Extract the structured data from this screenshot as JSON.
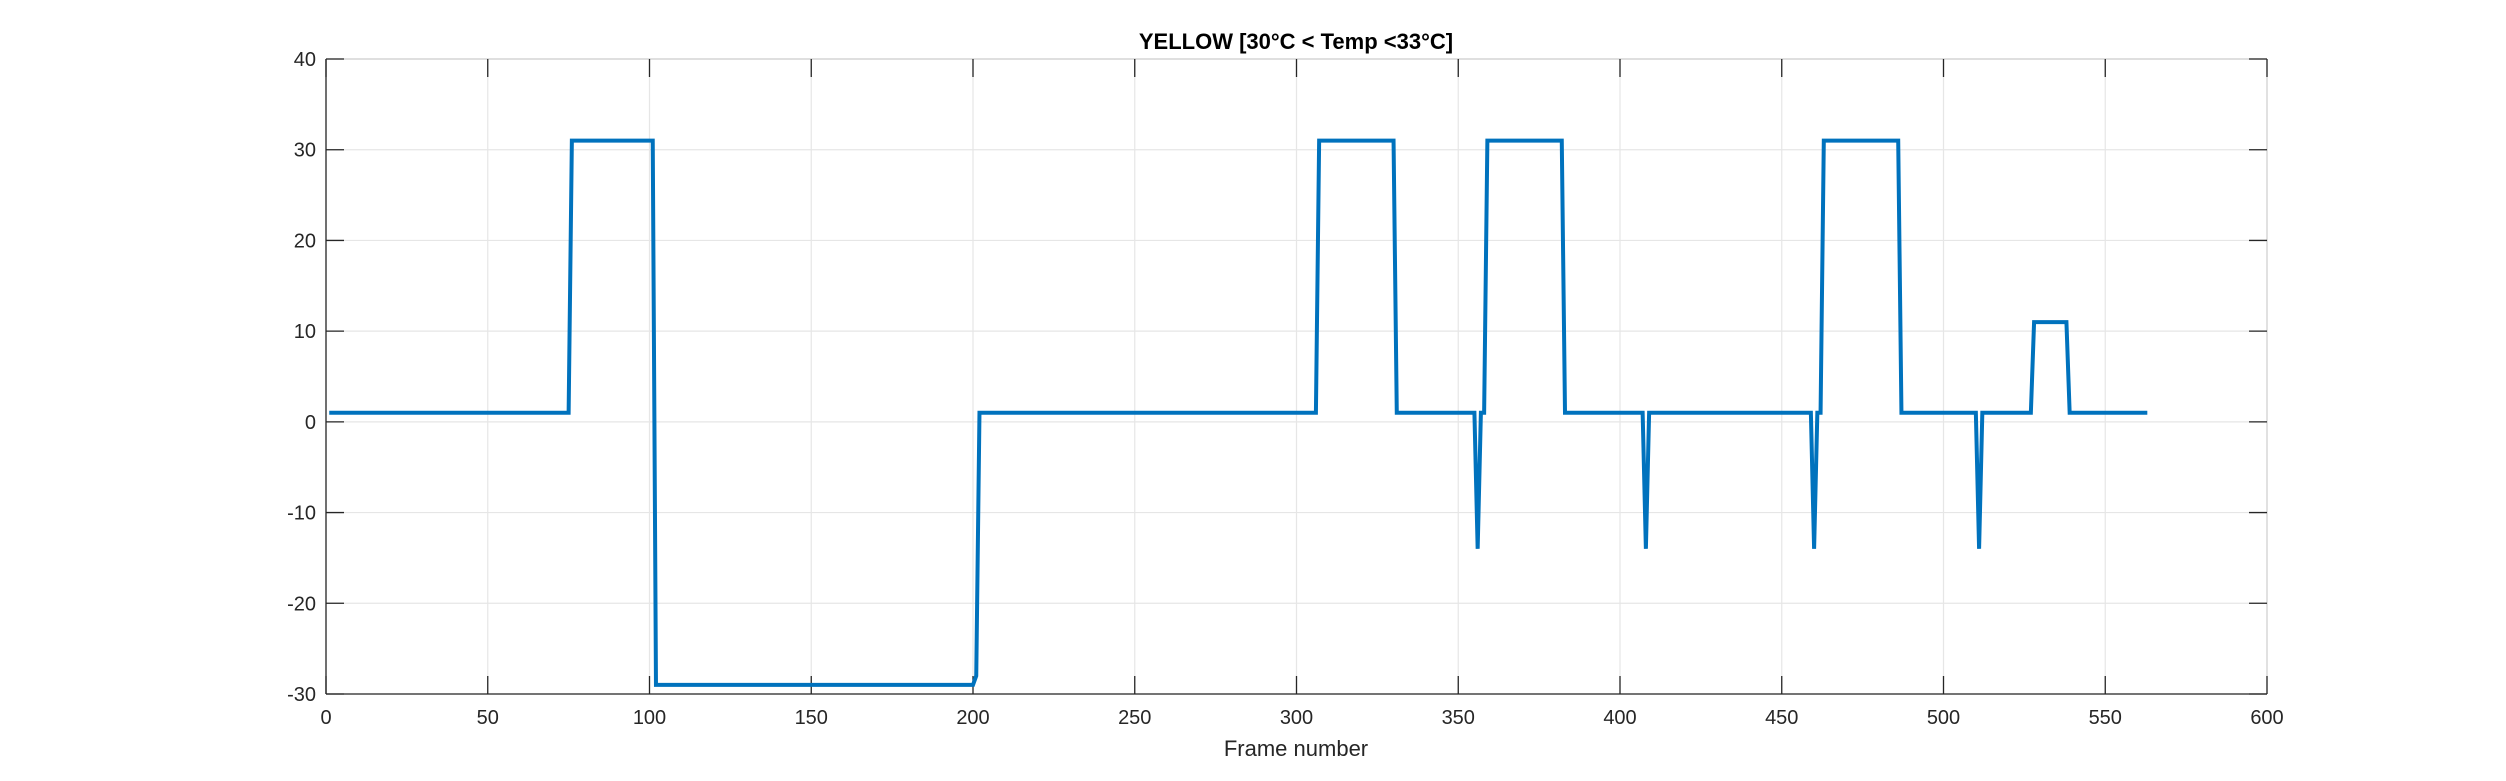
{
  "chart_data": {
    "type": "line",
    "title": "YELLOW [30°C < Temp <33°C]",
    "xlabel": "Frame number",
    "ylabel": "",
    "xlim": [
      0,
      600
    ],
    "ylim": [
      -30,
      40
    ],
    "xticks": [
      0,
      50,
      100,
      150,
      200,
      250,
      300,
      350,
      400,
      450,
      500,
      550,
      600
    ],
    "yticks": [
      -30,
      -20,
      -10,
      0,
      10,
      20,
      30,
      40
    ],
    "grid": true,
    "line_color": "#0072BD",
    "grid_color": "#e6e6e6",
    "axis_color": "#262626",
    "series": [
      {
        "x": [
          1,
          75,
          76,
          100,
          101,
          102,
          200,
          201,
          202,
          306,
          307,
          330,
          331,
          354,
          355,
          356,
          357,
          358,
          359,
          382,
          383,
          407,
          408,
          409,
          459,
          460,
          461,
          462,
          463,
          486,
          487,
          510,
          511,
          512,
          527,
          528,
          538,
          539,
          563
        ],
        "y": [
          1,
          1,
          31,
          31,
          31,
          -29,
          -29,
          -28,
          1,
          1,
          31,
          31,
          1,
          1,
          1,
          -14,
          1,
          1,
          31,
          31,
          1,
          1,
          -14,
          1,
          1,
          -14,
          1,
          1,
          31,
          31,
          1,
          1,
          -14,
          1,
          1,
          11,
          11,
          1,
          1
        ]
      }
    ]
  }
}
